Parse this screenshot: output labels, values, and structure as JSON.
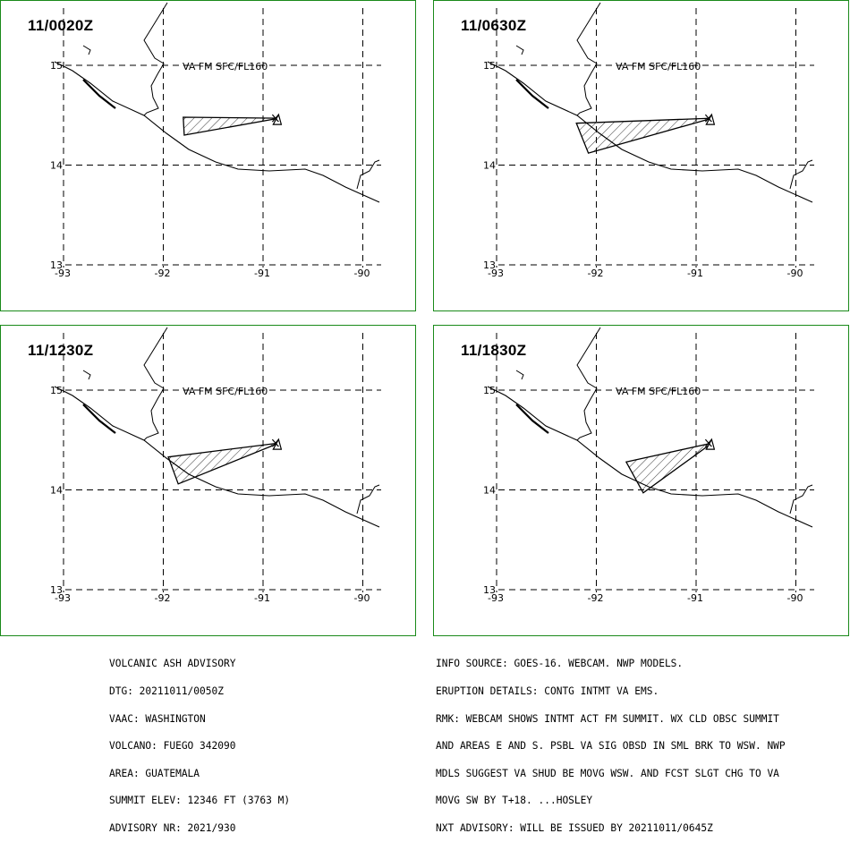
{
  "panels": [
    {
      "time": "11/0020Z",
      "label": "VA FM SFC/FL160"
    },
    {
      "time": "11/0630Z",
      "label": "VA FM SFC/FL160"
    },
    {
      "time": "11/1230Z",
      "label": "VA FM SFC/FL160"
    },
    {
      "time": "11/1830Z",
      "label": "VA FM SFC/FL160"
    }
  ],
  "axes": {
    "lon_labels": [
      "-93",
      "-92",
      "-91",
      "-90"
    ],
    "lat_labels": [
      "15",
      "14",
      "13"
    ],
    "lon_range": [
      -93,
      -89.8
    ],
    "lat_range": [
      12.98,
      15.6
    ]
  },
  "map_data": {
    "volcano_position": {
      "lon": -90.88,
      "lat": 14.47
    },
    "ash_polygons": [
      [
        [
          -91.8,
          14.48
        ],
        [
          -90.84,
          14.47
        ],
        [
          -91.79,
          14.3
        ]
      ],
      [
        [
          -92.2,
          14.42
        ],
        [
          -90.84,
          14.47
        ],
        [
          -92.08,
          14.12
        ]
      ],
      [
        [
          -91.95,
          14.33
        ],
        [
          -90.84,
          14.47
        ],
        [
          -91.85,
          14.06
        ]
      ],
      [
        [
          -91.7,
          14.28
        ],
        [
          -90.84,
          14.47
        ],
        [
          -91.53,
          13.97
        ]
      ]
    ]
  },
  "advisory_left": [
    "VOLCANIC ASH ADVISORY",
    "DTG: 20211011/0050Z",
    "VAAC: WASHINGTON",
    "VOLCANO: FUEGO 342090",
    "AREA: GUATEMALA",
    "SUMMIT ELEV: 12346 FT (3763 M)",
    "ADVISORY NR: 2021/930"
  ],
  "advisory_right": [
    "INFO SOURCE: GOES-16. WEBCAM. NWP MODELS.",
    "ERUPTION DETAILS: CONTG INTMT VA EMS.",
    "RMK: WEBCAM SHOWS INTMT ACT FM SUMMIT. WX CLD OBSC SUMMIT",
    "AND AREAS E AND S. PSBL VA SIG OBSD IN SML BRK TO WSW. NWP",
    "MDLS SUGGEST VA SHUD BE MOVG WSW. AND FCST SLGT CHG TO VA",
    "MOVG SW BY T+18. ...HOSLEY",
    "NXT ADVISORY: WILL BE ISSUED BY 20211011/0645Z"
  ]
}
